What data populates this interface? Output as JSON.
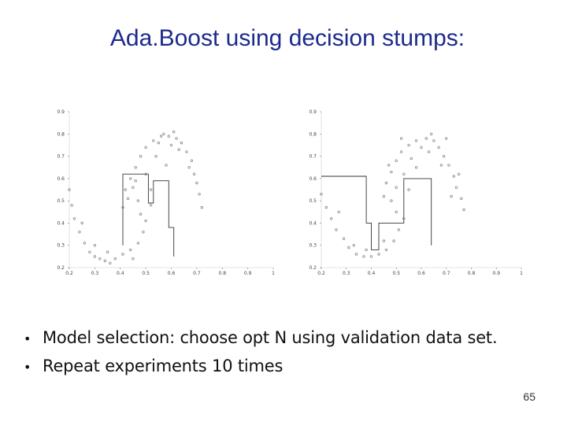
{
  "slide": {
    "title": "Ada.Boost using decision stumps:",
    "page_number": "65"
  },
  "bullets": [
    {
      "marker": "•",
      "text": "Model selection: choose opt N using validation data set."
    },
    {
      "marker": "•",
      "text": "Repeat experiments 10 times"
    }
  ],
  "colors": {
    "title": "#1c2a8c",
    "points": "#8a8a8a",
    "boundary": "#333333"
  },
  "chart_data": [
    {
      "type": "scatter",
      "title": "",
      "xlabel": "",
      "ylabel": "",
      "xlim": [
        0.2,
        1.0
      ],
      "ylim": [
        0.2,
        0.9
      ],
      "x_ticks": [
        "0.2",
        "0.3",
        "0.4",
        "0.5",
        "0.6",
        "0.7",
        "0.8",
        "0.9",
        "1"
      ],
      "y_ticks": [
        "0.2",
        "0.3",
        "0.4",
        "0.5",
        "0.6",
        "0.7",
        "0.8",
        "0.9"
      ],
      "x_tick_values": [
        0.2,
        0.3,
        0.4,
        0.5,
        0.6,
        0.7,
        0.8,
        0.9,
        1.0
      ],
      "y_tick_values": [
        0.2,
        0.3,
        0.4,
        0.5,
        0.6,
        0.7,
        0.8,
        0.9
      ],
      "grid": false,
      "points": [
        [
          0.2,
          0.55
        ],
        [
          0.21,
          0.48
        ],
        [
          0.22,
          0.42
        ],
        [
          0.24,
          0.36
        ],
        [
          0.26,
          0.31
        ],
        [
          0.28,
          0.27
        ],
        [
          0.3,
          0.25
        ],
        [
          0.32,
          0.24
        ],
        [
          0.34,
          0.23
        ],
        [
          0.36,
          0.22
        ],
        [
          0.38,
          0.24
        ],
        [
          0.41,
          0.26
        ],
        [
          0.44,
          0.28
        ],
        [
          0.47,
          0.31
        ],
        [
          0.49,
          0.36
        ],
        [
          0.5,
          0.41
        ],
        [
          0.3,
          0.3
        ],
        [
          0.35,
          0.27
        ],
        [
          0.45,
          0.24
        ],
        [
          0.25,
          0.4
        ],
        [
          0.41,
          0.47
        ],
        [
          0.42,
          0.55
        ],
        [
          0.44,
          0.6
        ],
        [
          0.46,
          0.65
        ],
        [
          0.48,
          0.7
        ],
        [
          0.5,
          0.74
        ],
        [
          0.53,
          0.77
        ],
        [
          0.56,
          0.79
        ],
        [
          0.59,
          0.79
        ],
        [
          0.62,
          0.78
        ],
        [
          0.64,
          0.76
        ],
        [
          0.66,
          0.72
        ],
        [
          0.68,
          0.68
        ],
        [
          0.69,
          0.62
        ],
        [
          0.7,
          0.58
        ],
        [
          0.71,
          0.53
        ],
        [
          0.72,
          0.47
        ],
        [
          0.55,
          0.76
        ],
        [
          0.6,
          0.75
        ],
        [
          0.63,
          0.73
        ],
        [
          0.45,
          0.56
        ],
        [
          0.47,
          0.5
        ],
        [
          0.52,
          0.55
        ],
        [
          0.5,
          0.62
        ],
        [
          0.43,
          0.51
        ],
        [
          0.58,
          0.66
        ],
        [
          0.67,
          0.65
        ],
        [
          0.48,
          0.44
        ],
        [
          0.52,
          0.48
        ],
        [
          0.46,
          0.59
        ],
        [
          0.57,
          0.8
        ],
        [
          0.61,
          0.81
        ],
        [
          0.54,
          0.7
        ]
      ],
      "boundary": [
        [
          0.41,
          0.3
        ],
        [
          0.41,
          0.62
        ],
        [
          0.51,
          0.62
        ],
        [
          0.51,
          0.49
        ],
        [
          0.53,
          0.49
        ],
        [
          0.53,
          0.59
        ],
        [
          0.59,
          0.59
        ],
        [
          0.59,
          0.38
        ],
        [
          0.61,
          0.38
        ],
        [
          0.61,
          0.25
        ]
      ]
    },
    {
      "type": "scatter",
      "title": "",
      "xlabel": "",
      "ylabel": "",
      "xlim": [
        0.2,
        1.0
      ],
      "ylim": [
        0.2,
        0.9
      ],
      "x_ticks": [
        "0.2",
        "0.3",
        "0.4",
        "0.5",
        "0.6",
        "0.7",
        "0.8",
        "0.9",
        "1"
      ],
      "y_ticks": [
        "0.2",
        "0.3",
        "0.4",
        "0.5",
        "0.6",
        "0.7",
        "0.8",
        "0.9"
      ],
      "x_tick_values": [
        0.2,
        0.3,
        0.4,
        0.5,
        0.6,
        0.7,
        0.8,
        0.9,
        1.0
      ],
      "y_tick_values": [
        0.2,
        0.3,
        0.4,
        0.5,
        0.6,
        0.7,
        0.8,
        0.9
      ],
      "grid": false,
      "points": [
        [
          0.2,
          0.53
        ],
        [
          0.22,
          0.47
        ],
        [
          0.24,
          0.42
        ],
        [
          0.26,
          0.37
        ],
        [
          0.29,
          0.33
        ],
        [
          0.31,
          0.29
        ],
        [
          0.34,
          0.26
        ],
        [
          0.37,
          0.25
        ],
        [
          0.4,
          0.25
        ],
        [
          0.43,
          0.26
        ],
        [
          0.46,
          0.28
        ],
        [
          0.49,
          0.32
        ],
        [
          0.51,
          0.37
        ],
        [
          0.53,
          0.42
        ],
        [
          0.27,
          0.45
        ],
        [
          0.33,
          0.3
        ],
        [
          0.45,
          0.32
        ],
        [
          0.38,
          0.28
        ],
        [
          0.5,
          0.45
        ],
        [
          0.45,
          0.52
        ],
        [
          0.46,
          0.58
        ],
        [
          0.48,
          0.63
        ],
        [
          0.5,
          0.68
        ],
        [
          0.52,
          0.72
        ],
        [
          0.55,
          0.75
        ],
        [
          0.58,
          0.77
        ],
        [
          0.62,
          0.78
        ],
        [
          0.65,
          0.77
        ],
        [
          0.67,
          0.74
        ],
        [
          0.69,
          0.7
        ],
        [
          0.71,
          0.66
        ],
        [
          0.73,
          0.61
        ],
        [
          0.74,
          0.56
        ],
        [
          0.76,
          0.51
        ],
        [
          0.77,
          0.46
        ],
        [
          0.6,
          0.74
        ],
        [
          0.63,
          0.72
        ],
        [
          0.56,
          0.69
        ],
        [
          0.53,
          0.62
        ],
        [
          0.5,
          0.56
        ],
        [
          0.58,
          0.65
        ],
        [
          0.68,
          0.66
        ],
        [
          0.55,
          0.55
        ],
        [
          0.48,
          0.5
        ],
        [
          0.64,
          0.8
        ],
        [
          0.7,
          0.78
        ],
        [
          0.75,
          0.62
        ],
        [
          0.52,
          0.78
        ],
        [
          0.47,
          0.66
        ],
        [
          0.72,
          0.52
        ]
      ],
      "boundary": [
        [
          0.2,
          0.61
        ],
        [
          0.38,
          0.61
        ],
        [
          0.38,
          0.4
        ],
        [
          0.4,
          0.4
        ],
        [
          0.4,
          0.28
        ],
        [
          0.43,
          0.28
        ],
        [
          0.43,
          0.4
        ],
        [
          0.53,
          0.4
        ],
        [
          0.53,
          0.6
        ],
        [
          0.64,
          0.6
        ],
        [
          0.64,
          0.3
        ]
      ]
    }
  ]
}
